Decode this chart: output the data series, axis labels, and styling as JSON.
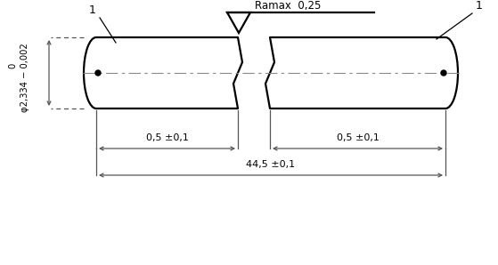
{
  "bg_color": "#ffffff",
  "line_color": "#000000",
  "dim_color": "#555555",
  "centerline_color": "#888888",
  "figsize": [
    5.59,
    2.98
  ],
  "dpi": 100,
  "ramax_label": "Ramax  0,25",
  "dim_label_05_1": "0,5 ±0,1",
  "dim_label_05_2": "0,5 ±0,1",
  "dim_label_445": "44,5 ±0,1",
  "label_1_left": "1",
  "label_1_right": "1",
  "phi_label": "φ2,334 − 0,002",
  "zero_label": "0"
}
